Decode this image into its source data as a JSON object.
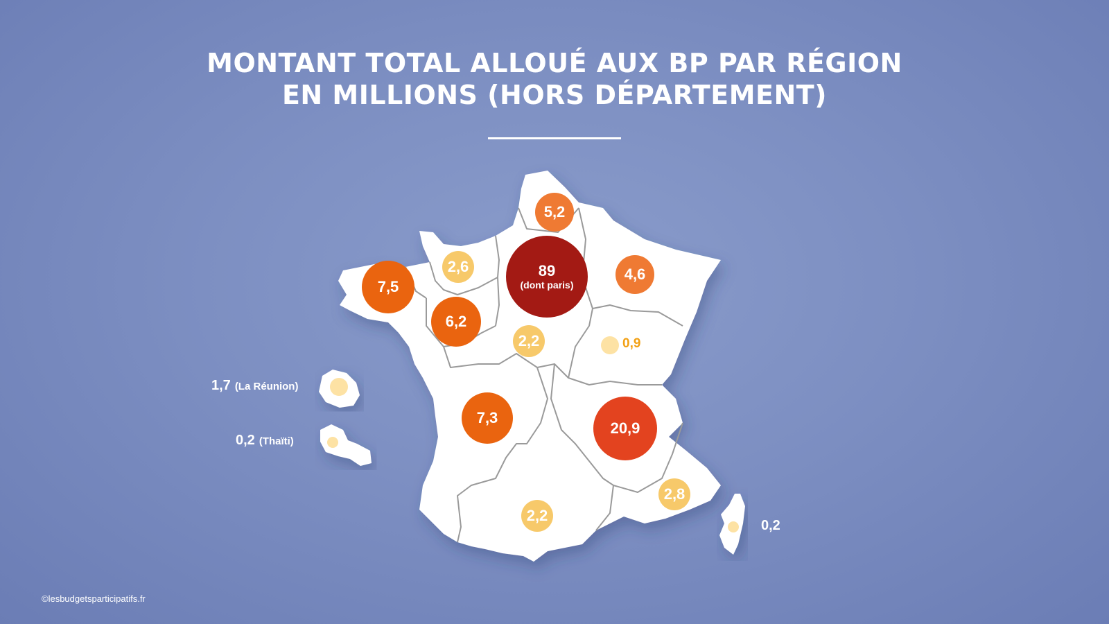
{
  "title": {
    "line1": "MONTANT TOTAL ALLOUÉ AUX BP PAR RÉGION",
    "line2": "EN MILLIONS (HORS DÉPARTEMENT)"
  },
  "colors": {
    "background": "#7d8fc2",
    "map_fill": "#ffffff",
    "region_border": "#9a9a9a",
    "scale_high": "#a31a14",
    "scale_mid_high": "#e3431f",
    "scale_mid": "#ea640f",
    "scale_low_mid": "#ef7a33",
    "scale_low": "#f7c96a",
    "scale_very_low": "#fde2a4",
    "low_value_label": "#f2a013"
  },
  "regions": {
    "hauts_de_france": {
      "value": "5,2",
      "amount": 5.2
    },
    "ile_de_france": {
      "value": "89",
      "note": "(dont paris)",
      "amount": 89
    },
    "grand_est": {
      "value": "4,6",
      "amount": 4.6
    },
    "normandie": {
      "value": "2,6",
      "amount": 2.6
    },
    "bretagne": {
      "value": "7,5",
      "amount": 7.5
    },
    "pays_de_la_loire": {
      "value": "6,2",
      "amount": 6.2
    },
    "centre_val_de_loire": {
      "value": "2,2",
      "amount": 2.2
    },
    "bourgogne_franche_comte": {
      "value": "0,9",
      "amount": 0.9
    },
    "nouvelle_aquitaine": {
      "value": "7,3",
      "amount": 7.3
    },
    "auvergne_rhone_alpes": {
      "value": "20,9",
      "amount": 20.9
    },
    "occitanie": {
      "value": "2,2",
      "amount": 2.2
    },
    "provence_alpes_cote_azur": {
      "value": "2,8",
      "amount": 2.8
    },
    "corse": {
      "value": "0,2",
      "amount": 0.2
    }
  },
  "overseas": {
    "reunion": {
      "value": "1,7",
      "name": "(La Réunion)",
      "amount": 1.7
    },
    "tahiti": {
      "value": "0,2",
      "name": "(Thaïti)",
      "amount": 0.2
    }
  },
  "credit": "©lesbudgetsparticipatifs.fr"
}
